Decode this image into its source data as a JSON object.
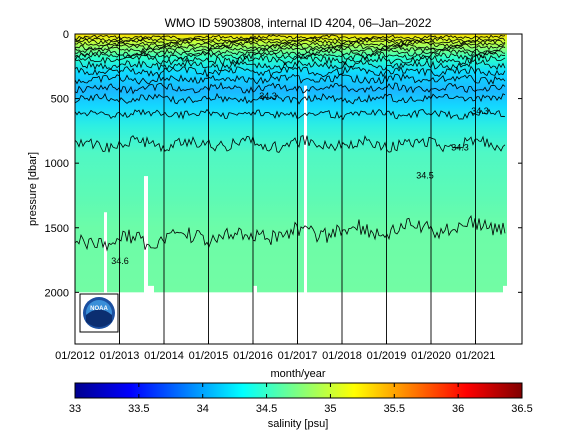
{
  "chart_data": {
    "type": "heatmap",
    "title": "WMO ID 5903808, internal ID 4204, 06–Jan–2022",
    "xlabel": "month/year",
    "ylabel": "pressure [dbar]",
    "x_ticks": [
      "01/2012",
      "01/2013",
      "01/2014",
      "01/2015",
      "01/2016",
      "01/2017",
      "01/2018",
      "01/2019",
      "01/2020",
      "01/2021"
    ],
    "y_ticks": [
      0,
      500,
      1000,
      1500,
      2000
    ],
    "xlim": [
      "2012-01",
      "2022-01"
    ],
    "ylim": [
      2400,
      0
    ],
    "colorbar": {
      "label": "salinity [psu]",
      "range": [
        33,
        36.5
      ],
      "ticks": [
        33,
        33.5,
        34,
        34.5,
        35,
        35.5,
        36,
        36.5
      ],
      "colormap": "jet"
    },
    "contour_labels": [
      "34.3",
      "34.3",
      "34.3",
      "34.5",
      "34.6"
    ],
    "approx_depth_salinity": [
      {
        "pressure": 0,
        "salinity": 35.3
      },
      {
        "pressure": 100,
        "salinity": 35.1
      },
      {
        "pressure": 250,
        "salinity": 34.7
      },
      {
        "pressure": 500,
        "salinity": 34.3
      },
      {
        "pressure": 800,
        "salinity": 34.4
      },
      {
        "pressure": 1000,
        "salinity": 34.5
      },
      {
        "pressure": 1500,
        "salinity": 34.6
      },
      {
        "pressure": 2000,
        "salinity": 34.7
      }
    ],
    "profile_max_pressure": 2000,
    "grid": {
      "x": true,
      "y": false
    },
    "logo": "NOAA"
  }
}
